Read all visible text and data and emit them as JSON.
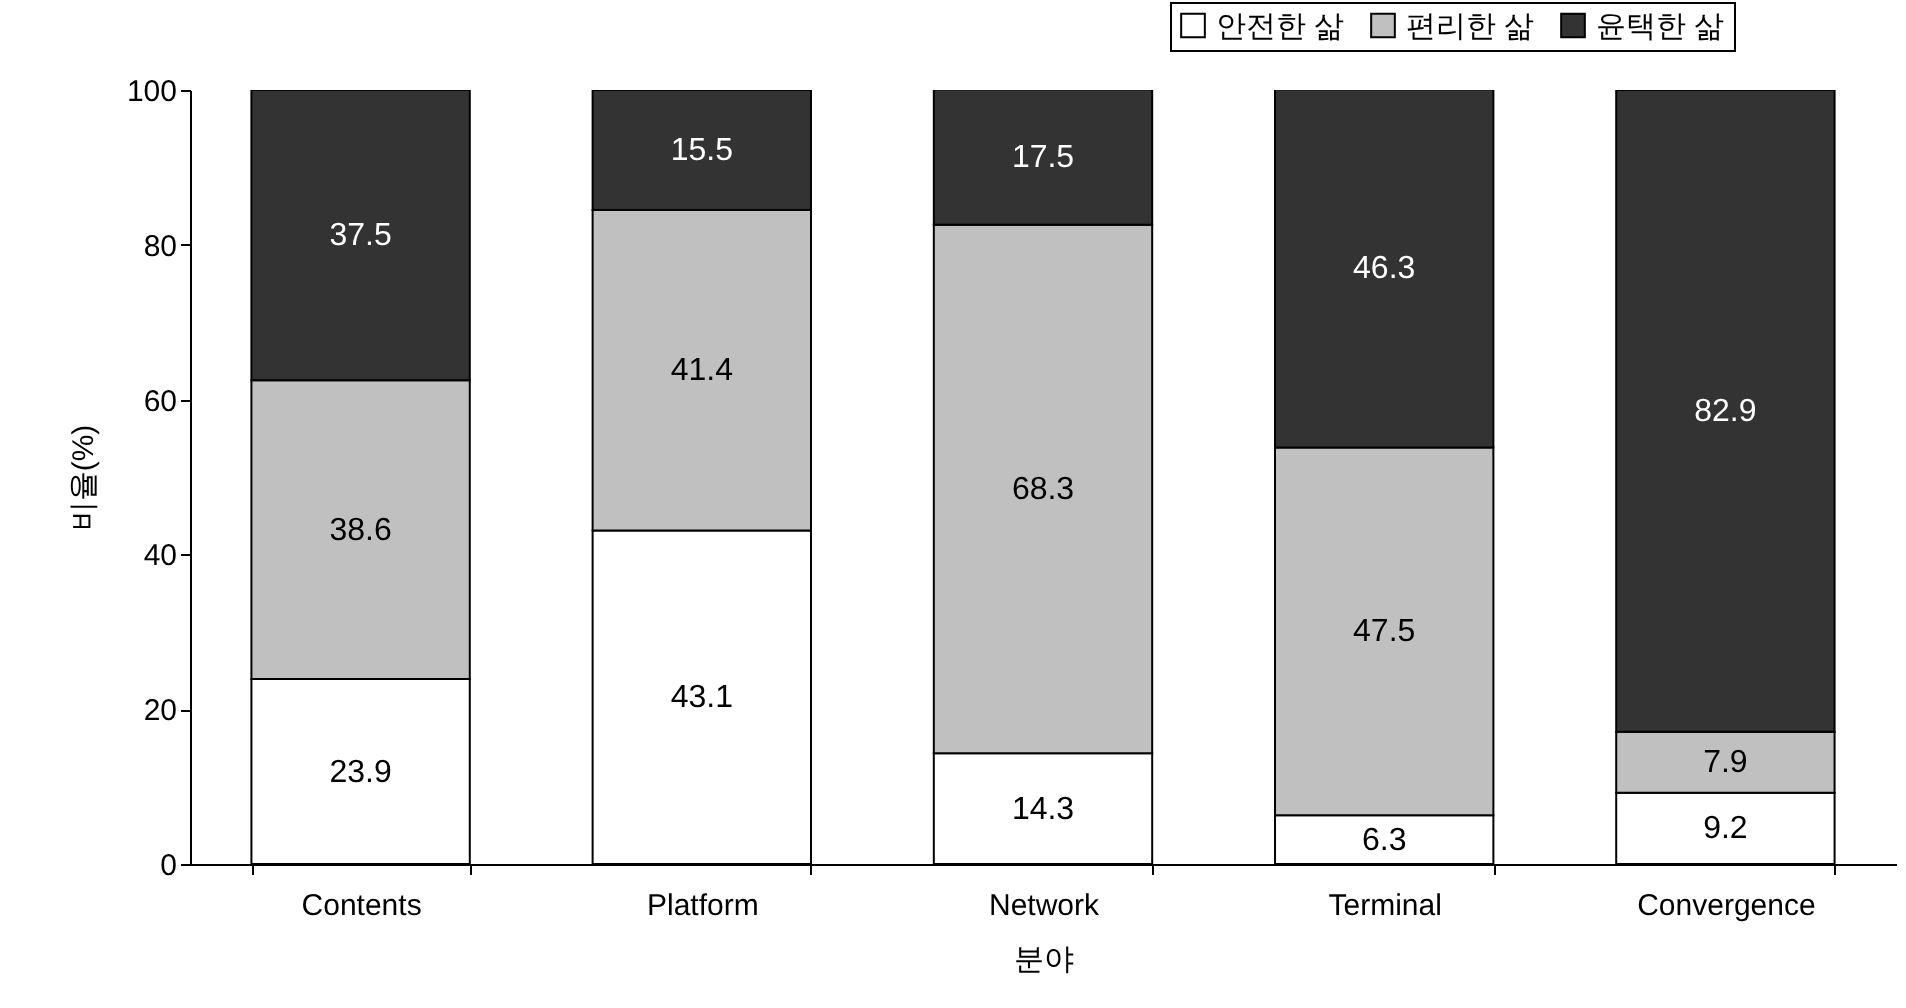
{
  "chart_data": {
    "type": "bar",
    "stacked": true,
    "xlabel": "분야",
    "ylabel": "비율(%)",
    "categories": [
      "Contents",
      "Platform",
      "Network",
      "Terminal",
      "Convergence"
    ],
    "series": [
      {
        "name": "안전한 삶",
        "color": "#ffffff",
        "values": [
          23.9,
          43.1,
          14.3,
          6.3,
          9.2
        ]
      },
      {
        "name": "편리한 삶",
        "color": "#c0c0c0",
        "values": [
          38.6,
          41.4,
          68.3,
          47.5,
          7.9
        ]
      },
      {
        "name": "윤택한 삶",
        "color": "#333333",
        "values": [
          37.5,
          15.5,
          17.5,
          46.3,
          82.9
        ]
      }
    ],
    "ylim": [
      0,
      100
    ],
    "yticks": [
      0,
      20,
      40,
      60,
      80,
      100
    ],
    "data_labels": true,
    "legend": "top right",
    "grid": false
  }
}
